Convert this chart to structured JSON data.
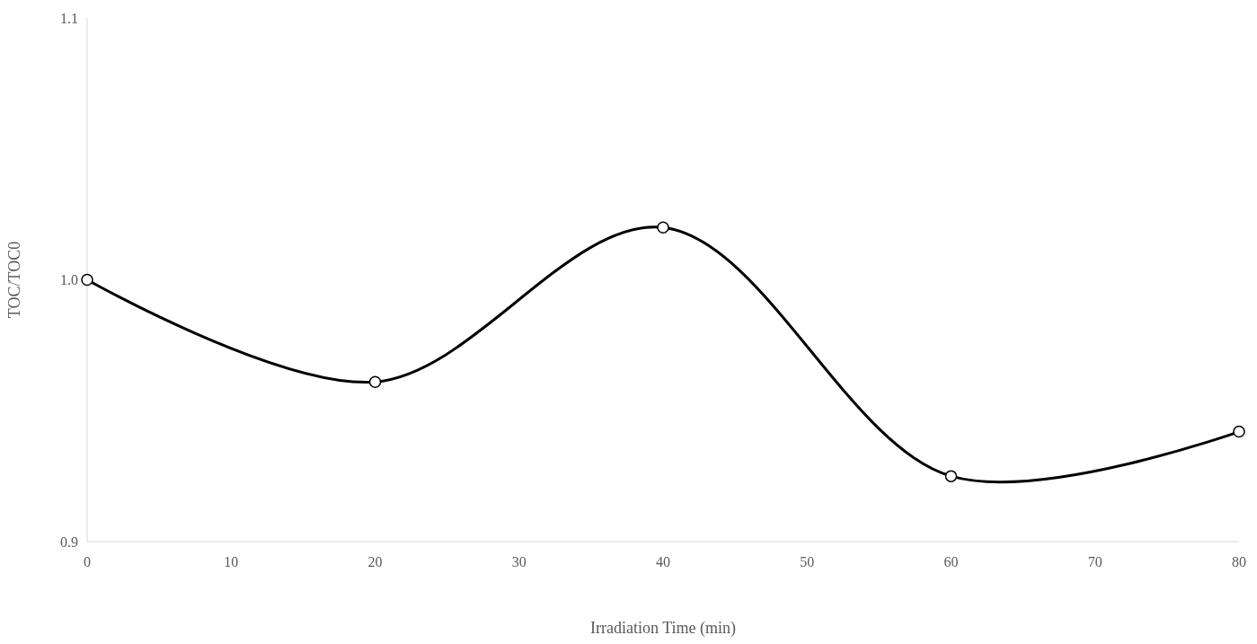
{
  "chart_data": {
    "type": "line",
    "xlabel": "Irradiation Time (min)",
    "ylabel": "TOC/TOC0",
    "x": [
      0,
      20,
      40,
      60,
      80
    ],
    "series": [
      {
        "color": "#000000",
        "values": [
          1.0,
          0.961,
          1.02,
          0.925,
          0.942
        ]
      }
    ],
    "xlim": [
      0,
      80
    ],
    "xticks": [
      0,
      10,
      20,
      30,
      40,
      50,
      60,
      70,
      80
    ],
    "ylim": [
      0.9,
      1.1
    ],
    "yticks": [
      0.9,
      {
        "value": 1.0,
        "label": "1.0"
      },
      1.1
    ],
    "grid": false,
    "marker": "circle",
    "line_style": "solid"
  }
}
